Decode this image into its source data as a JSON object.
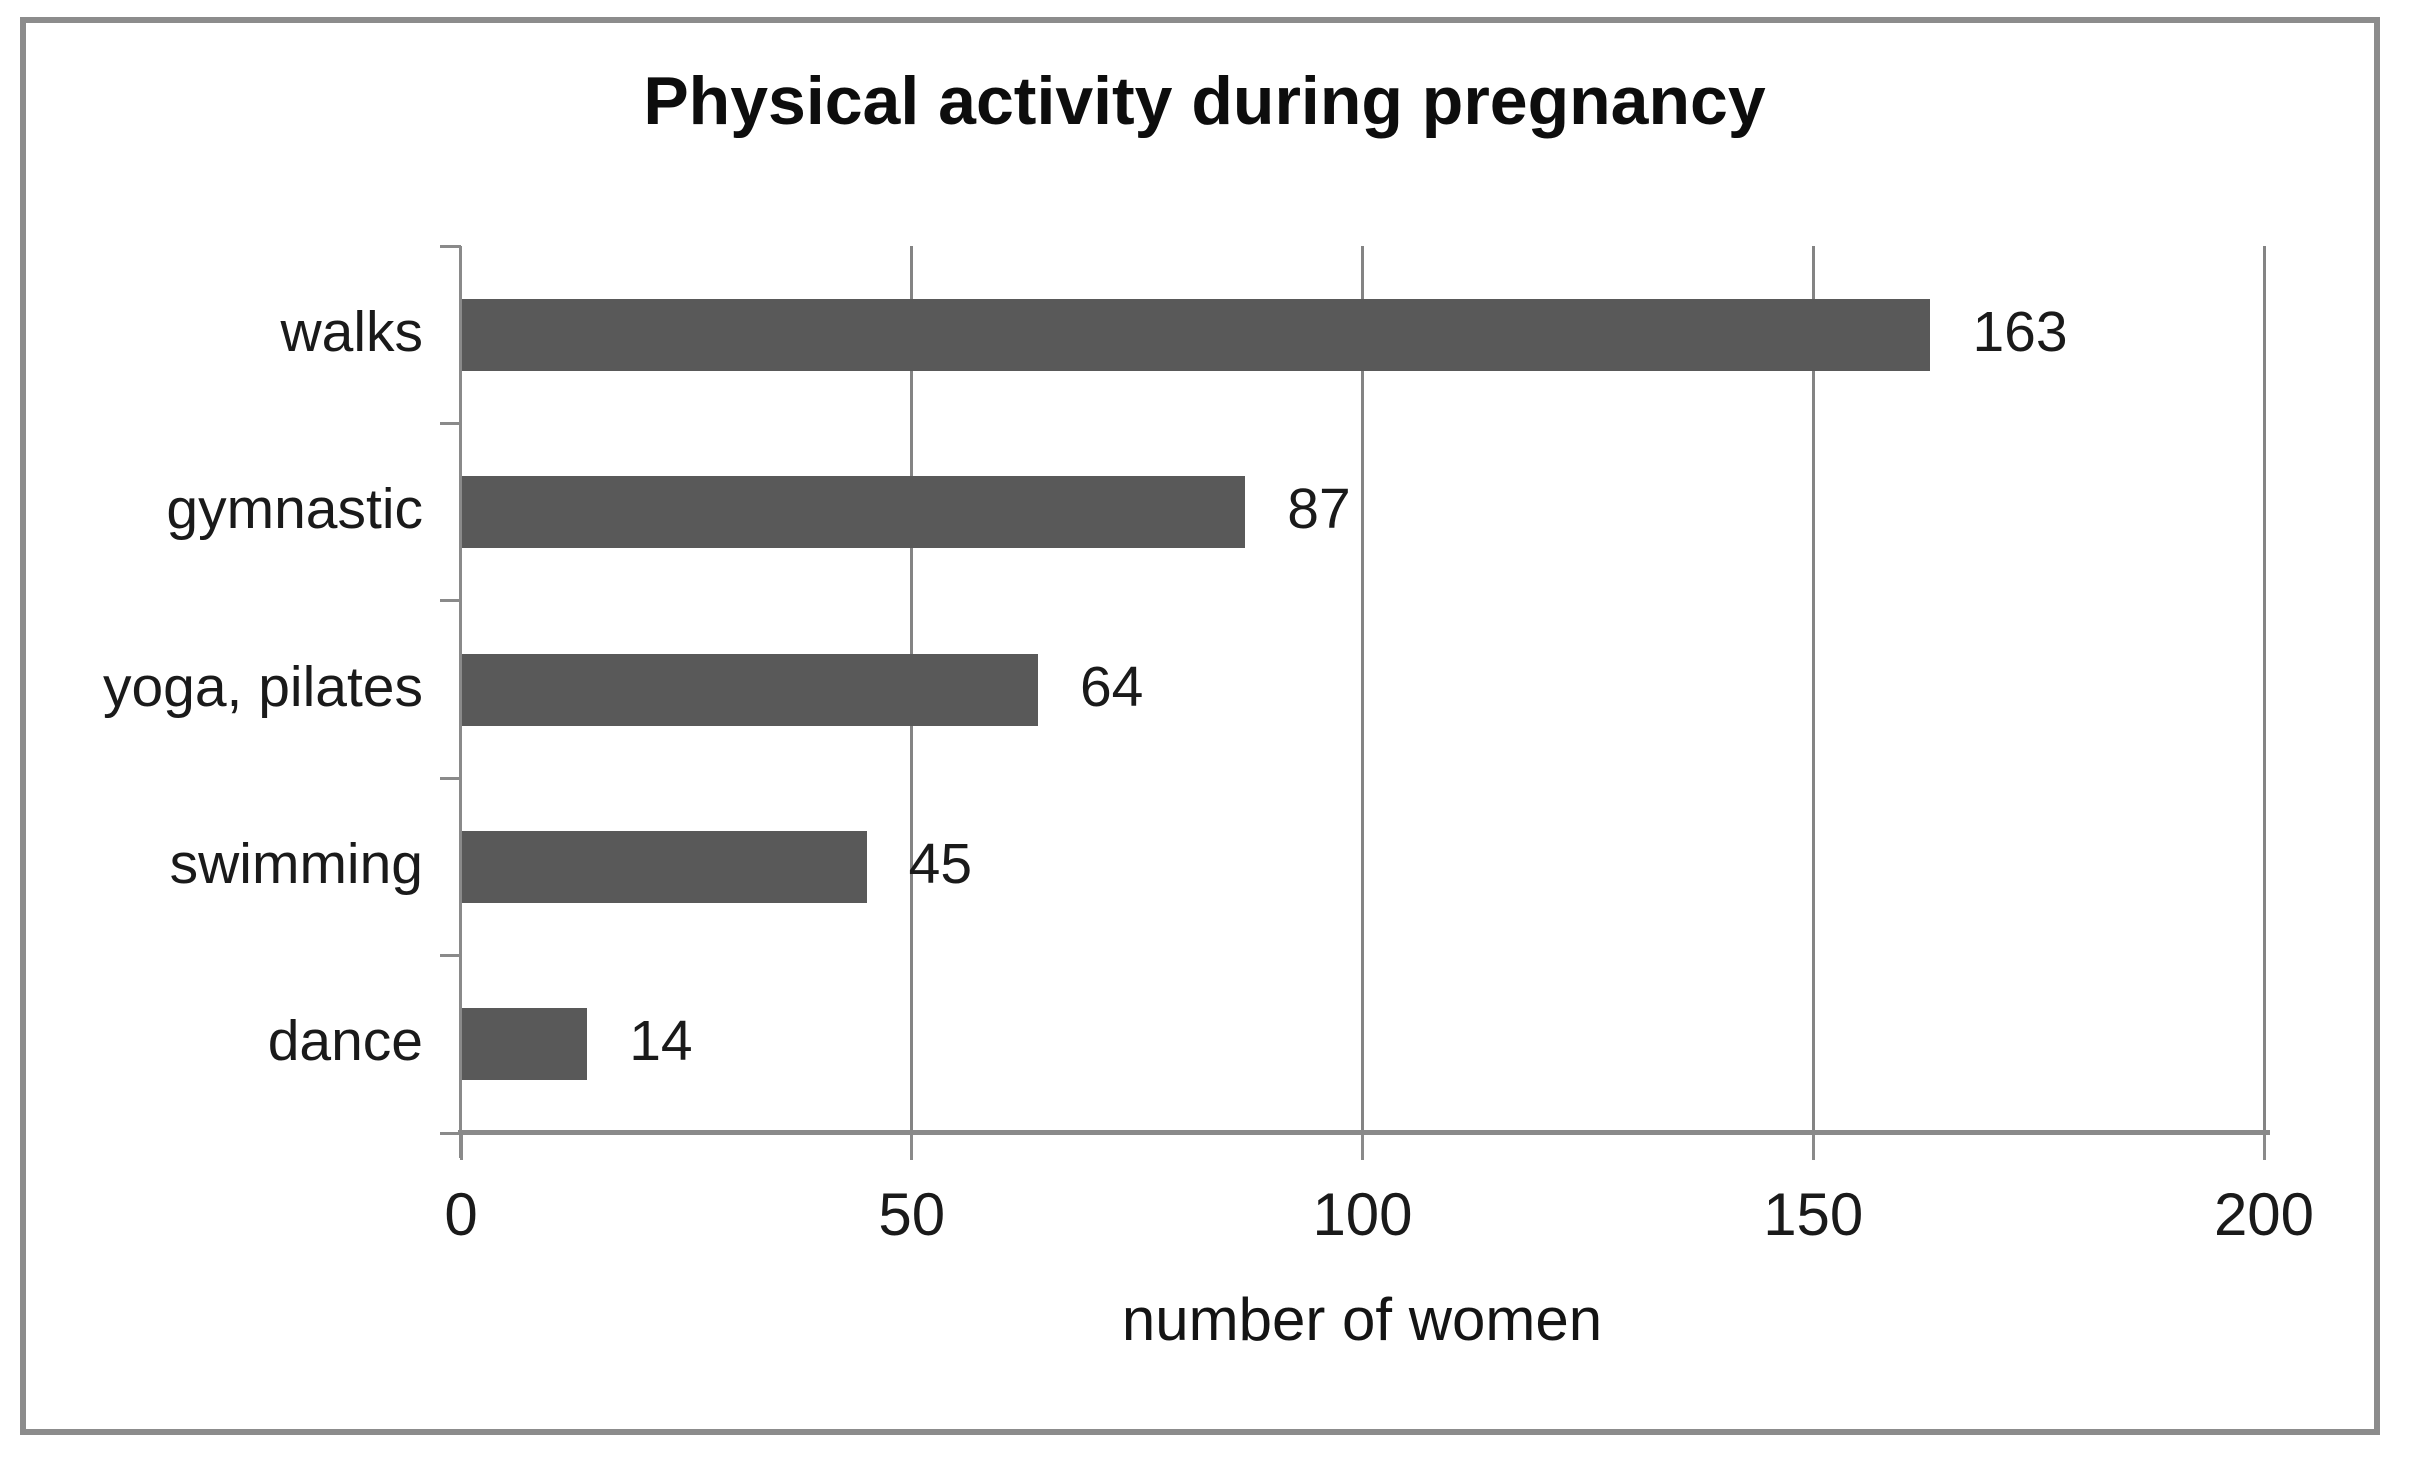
{
  "figure": {
    "title": "Physical activity during pregnancy",
    "xlabel": "number of women"
  },
  "chart_data": {
    "type": "bar",
    "orientation": "horizontal",
    "title": "Physical activity during pregnancy",
    "xlabel": "number of women",
    "ylabel": "",
    "categories": [
      "walks",
      "gymnastic",
      "yoga, pilates",
      "swimming",
      "dance"
    ],
    "values": [
      163,
      87,
      64,
      45,
      14
    ],
    "data_labels": [
      "163",
      "87",
      "64",
      "45",
      "14"
    ],
    "xlim": [
      0,
      200
    ],
    "xticks": [
      0,
      50,
      100,
      150,
      200
    ],
    "xtick_labels": [
      "0",
      "50",
      "100",
      "150",
      "200"
    ],
    "grid": "vertical gridlines at each x tick",
    "legend": "none",
    "colors": {
      "bar": "#595959",
      "gridline": "#848484",
      "axis": "#8a8a8a",
      "text": "#1a1a1a",
      "frame_border": "#8c8c8c",
      "background": "#ffffff"
    }
  }
}
